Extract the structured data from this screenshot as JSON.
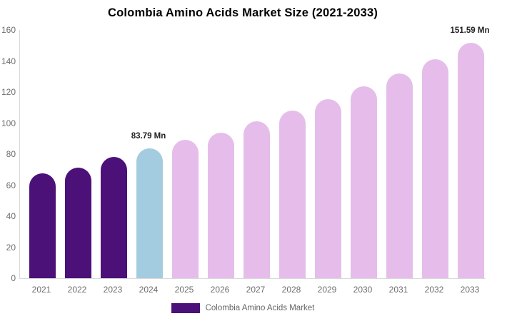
{
  "title": "Colombia Amino Acids Market Size (2021-2033)",
  "colors": {
    "historical_purple": "#4B1179",
    "base_year_blue": "#A4CCE0",
    "forecast_pink": "#E6BDEA",
    "axis_line": "#d9d9d9",
    "tick_text": "#6d6d6d",
    "legend_text": "#666666",
    "data_label_text": "#222222"
  },
  "chart_data": {
    "type": "bar",
    "title": "Colombia Amino Acids Market Size (2021-2033)",
    "categories": [
      "2021",
      "2022",
      "2023",
      "2024",
      "2025",
      "2026",
      "2027",
      "2028",
      "2029",
      "2030",
      "2031",
      "2032",
      "2033"
    ],
    "values": [
      67.5,
      71.5,
      78,
      83.79,
      89,
      94,
      101,
      108,
      115.5,
      123.5,
      132,
      141,
      151.59
    ],
    "unit": "Mn",
    "bar_colors": [
      "#4B1179",
      "#4B1179",
      "#4B1179",
      "#A4CCE0",
      "#E6BDEA",
      "#E6BDEA",
      "#E6BDEA",
      "#E6BDEA",
      "#E6BDEA",
      "#E6BDEA",
      "#E6BDEA",
      "#E6BDEA",
      "#E6BDEA"
    ],
    "xlabel": "",
    "ylabel": "",
    "ylim": [
      0,
      160
    ],
    "yticks": [
      0,
      20,
      40,
      60,
      80,
      100,
      120,
      140,
      160
    ],
    "grid": false,
    "legend_position": "bottom",
    "annotations": [
      {
        "category": "2024",
        "index": 3,
        "text": "83.79 Mn"
      },
      {
        "category": "2033",
        "index": 12,
        "text": "151.59 Mn"
      }
    ],
    "legend": [
      {
        "label": "Colombia Amino Acids Market",
        "color": "#4B1179"
      }
    ]
  }
}
